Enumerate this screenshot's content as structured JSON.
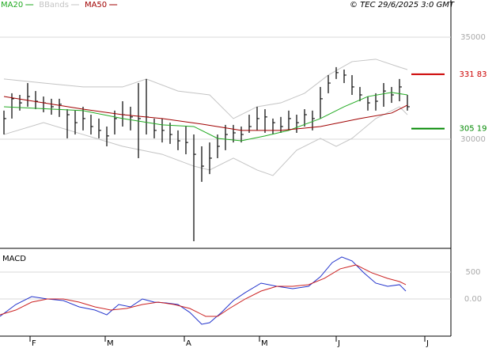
{
  "credit": "© TEC 29/6/2025 3:0 GMT",
  "chart_data": [
    {
      "type": "ohlc",
      "color": "#000000",
      "grid": true,
      "xlim": [
        -0.5,
        56.5
      ],
      "ylim": [
        24690,
        36820
      ],
      "yticks": [
        30000,
        35000
      ],
      "x": [
        0,
        1,
        2,
        3,
        4,
        5,
        6,
        7,
        8,
        9,
        10,
        11,
        12,
        13,
        14,
        15,
        16,
        17,
        18,
        19,
        20,
        21,
        22,
        23,
        24,
        25,
        26,
        27,
        28,
        29,
        30,
        31,
        32,
        33,
        34,
        35,
        36,
        37,
        38,
        39,
        40,
        41,
        42,
        43,
        44,
        45,
        46,
        47,
        48,
        49,
        50,
        51
      ],
      "high": [
        31400,
        32250,
        32170,
        32750,
        32360,
        32090,
        31980,
        31980,
        31470,
        31400,
        31590,
        31200,
        31010,
        30620,
        31400,
        31860,
        31590,
        32750,
        32950,
        31010,
        31010,
        30810,
        30430,
        30620,
        30230,
        29650,
        29840,
        30230,
        30700,
        30700,
        30620,
        31200,
        31590,
        31470,
        31010,
        31090,
        31400,
        31200,
        31470,
        31400,
        32560,
        33140,
        33530,
        33410,
        33140,
        32560,
        32090,
        32250,
        32750,
        32560,
        32950,
        32170
      ],
      "low": [
        30230,
        31010,
        31400,
        31590,
        31470,
        31320,
        31200,
        31090,
        30040,
        30230,
        30430,
        30230,
        30040,
        29650,
        30230,
        30620,
        30430,
        29070,
        30230,
        30040,
        29840,
        29770,
        29460,
        29260,
        25000,
        27910,
        28290,
        29070,
        29460,
        29840,
        29840,
        30310,
        30430,
        30310,
        30230,
        30310,
        30430,
        30310,
        30620,
        30430,
        31010,
        32250,
        32950,
        32750,
        32170,
        31860,
        31400,
        31400,
        31590,
        31780,
        31860,
        31400
      ],
      "close": [
        31010,
        31980,
        31780,
        32090,
        31860,
        31780,
        31590,
        31710,
        31200,
        30810,
        31010,
        30620,
        30430,
        30160,
        31010,
        31200,
        31090,
        31010,
        31090,
        30430,
        30430,
        30230,
        29920,
        29840,
        29260,
        28680,
        29070,
        29650,
        30230,
        30310,
        30230,
        30620,
        31010,
        31090,
        30810,
        30620,
        31010,
        30810,
        31200,
        31010,
        31980,
        32750,
        33260,
        33140,
        32560,
        32170,
        31780,
        31860,
        32360,
        32170,
        32560,
        31590
      ],
      "series": [
        {
          "name": "MA20",
          "color": "#22aa22",
          "x": [
            0,
            10,
            15,
            20,
            24,
            27,
            30,
            33,
            36,
            40,
            43,
            46,
            49,
            51
          ],
          "values": [
            31590,
            31400,
            31010,
            30700,
            30620,
            30040,
            29920,
            30160,
            30430,
            31010,
            31590,
            32090,
            32290,
            32170
          ]
        },
        {
          "name": "MA50",
          "color": "#a00000",
          "x": [
            0,
            5,
            10,
            15,
            20,
            25,
            30,
            35,
            40,
            45,
            49,
            51
          ],
          "values": [
            32090,
            31780,
            31470,
            31200,
            31010,
            30740,
            30430,
            30430,
            30620,
            31010,
            31280,
            31670
          ]
        }
      ],
      "bands": {
        "name": "BBands",
        "color": "#c4c4c4",
        "upper": {
          "x": [
            0,
            5,
            10,
            15,
            18,
            22,
            26,
            29,
            32,
            35,
            38,
            41,
            44,
            47,
            50,
            51
          ],
          "values": [
            32950,
            32750,
            32560,
            32560,
            32950,
            32360,
            32170,
            31010,
            31590,
            31780,
            32250,
            33140,
            33800,
            33920,
            33530,
            33410
          ]
        },
        "lower": {
          "x": [
            0,
            5,
            10,
            15,
            20,
            24,
            26,
            29,
            32,
            34,
            37,
            40,
            42,
            44,
            47,
            50,
            51
          ],
          "values": [
            30230,
            30810,
            30230,
            29650,
            29260,
            28680,
            28490,
            29070,
            28490,
            28220,
            29460,
            30040,
            29650,
            30040,
            31010,
            31590,
            31200
          ]
        }
      },
      "levels": [
        {
          "label": "331 83",
          "value": 33183,
          "color": "#cc0000"
        },
        {
          "label": "305 19",
          "value": 30519,
          "color": "#008800"
        }
      ]
    },
    {
      "type": "line",
      "title": "MACD",
      "grid": true,
      "xlim": [
        -0.5,
        56.5
      ],
      "ylim": [
        -690,
        925
      ],
      "yticks": [
        {
          "value": 0,
          "label": "0.00"
        },
        500
      ],
      "xticks": [
        {
          "value": 3.3,
          "label": "F"
        },
        {
          "value": 12.8,
          "label": "M"
        },
        {
          "value": 22.8,
          "label": "A"
        },
        {
          "value": 32.3,
          "label": "M"
        },
        {
          "value": 42,
          "label": "J"
        },
        {
          "value": 53.2,
          "label": "J"
        }
      ],
      "series": [
        {
          "color": "#2233cc",
          "x": [
            -0.5,
            1.5,
            3.5,
            5.5,
            7.5,
            9.5,
            11.5,
            13,
            14.5,
            16,
            17.5,
            19,
            20.5,
            22,
            23.5,
            25,
            26,
            27.5,
            29,
            30.5,
            32.5,
            34.5,
            36.5,
            38.5,
            40,
            41.5,
            42.7,
            44,
            45.5,
            47,
            48.5,
            50,
            50.8
          ],
          "values": [
            -323,
            -103,
            44,
            0,
            -29,
            -147,
            -206,
            -294,
            -103,
            -147,
            0,
            -59,
            -74,
            -103,
            -250,
            -470,
            -441,
            -250,
            -29,
            118,
            294,
            235,
            191,
            235,
            412,
            676,
            779,
            706,
            485,
            294,
            235,
            265,
            147
          ]
        },
        {
          "color": "#cc2222",
          "x": [
            -0.5,
            1.5,
            3.5,
            5.5,
            7.5,
            9.5,
            11.5,
            13.5,
            15.5,
            17.5,
            19.5,
            21.5,
            23.5,
            25.5,
            27,
            28.5,
            30.5,
            32.5,
            34.5,
            36.5,
            38.5,
            40.5,
            42.5,
            44.5,
            46.5,
            48.5,
            50,
            50.8
          ],
          "values": [
            -294,
            -206,
            -59,
            0,
            0,
            -59,
            -147,
            -206,
            -176,
            -103,
            -59,
            -103,
            -176,
            -323,
            -323,
            -176,
            0,
            147,
            235,
            235,
            265,
            382,
            559,
            632,
            485,
            382,
            323,
            265
          ]
        }
      ]
    }
  ]
}
